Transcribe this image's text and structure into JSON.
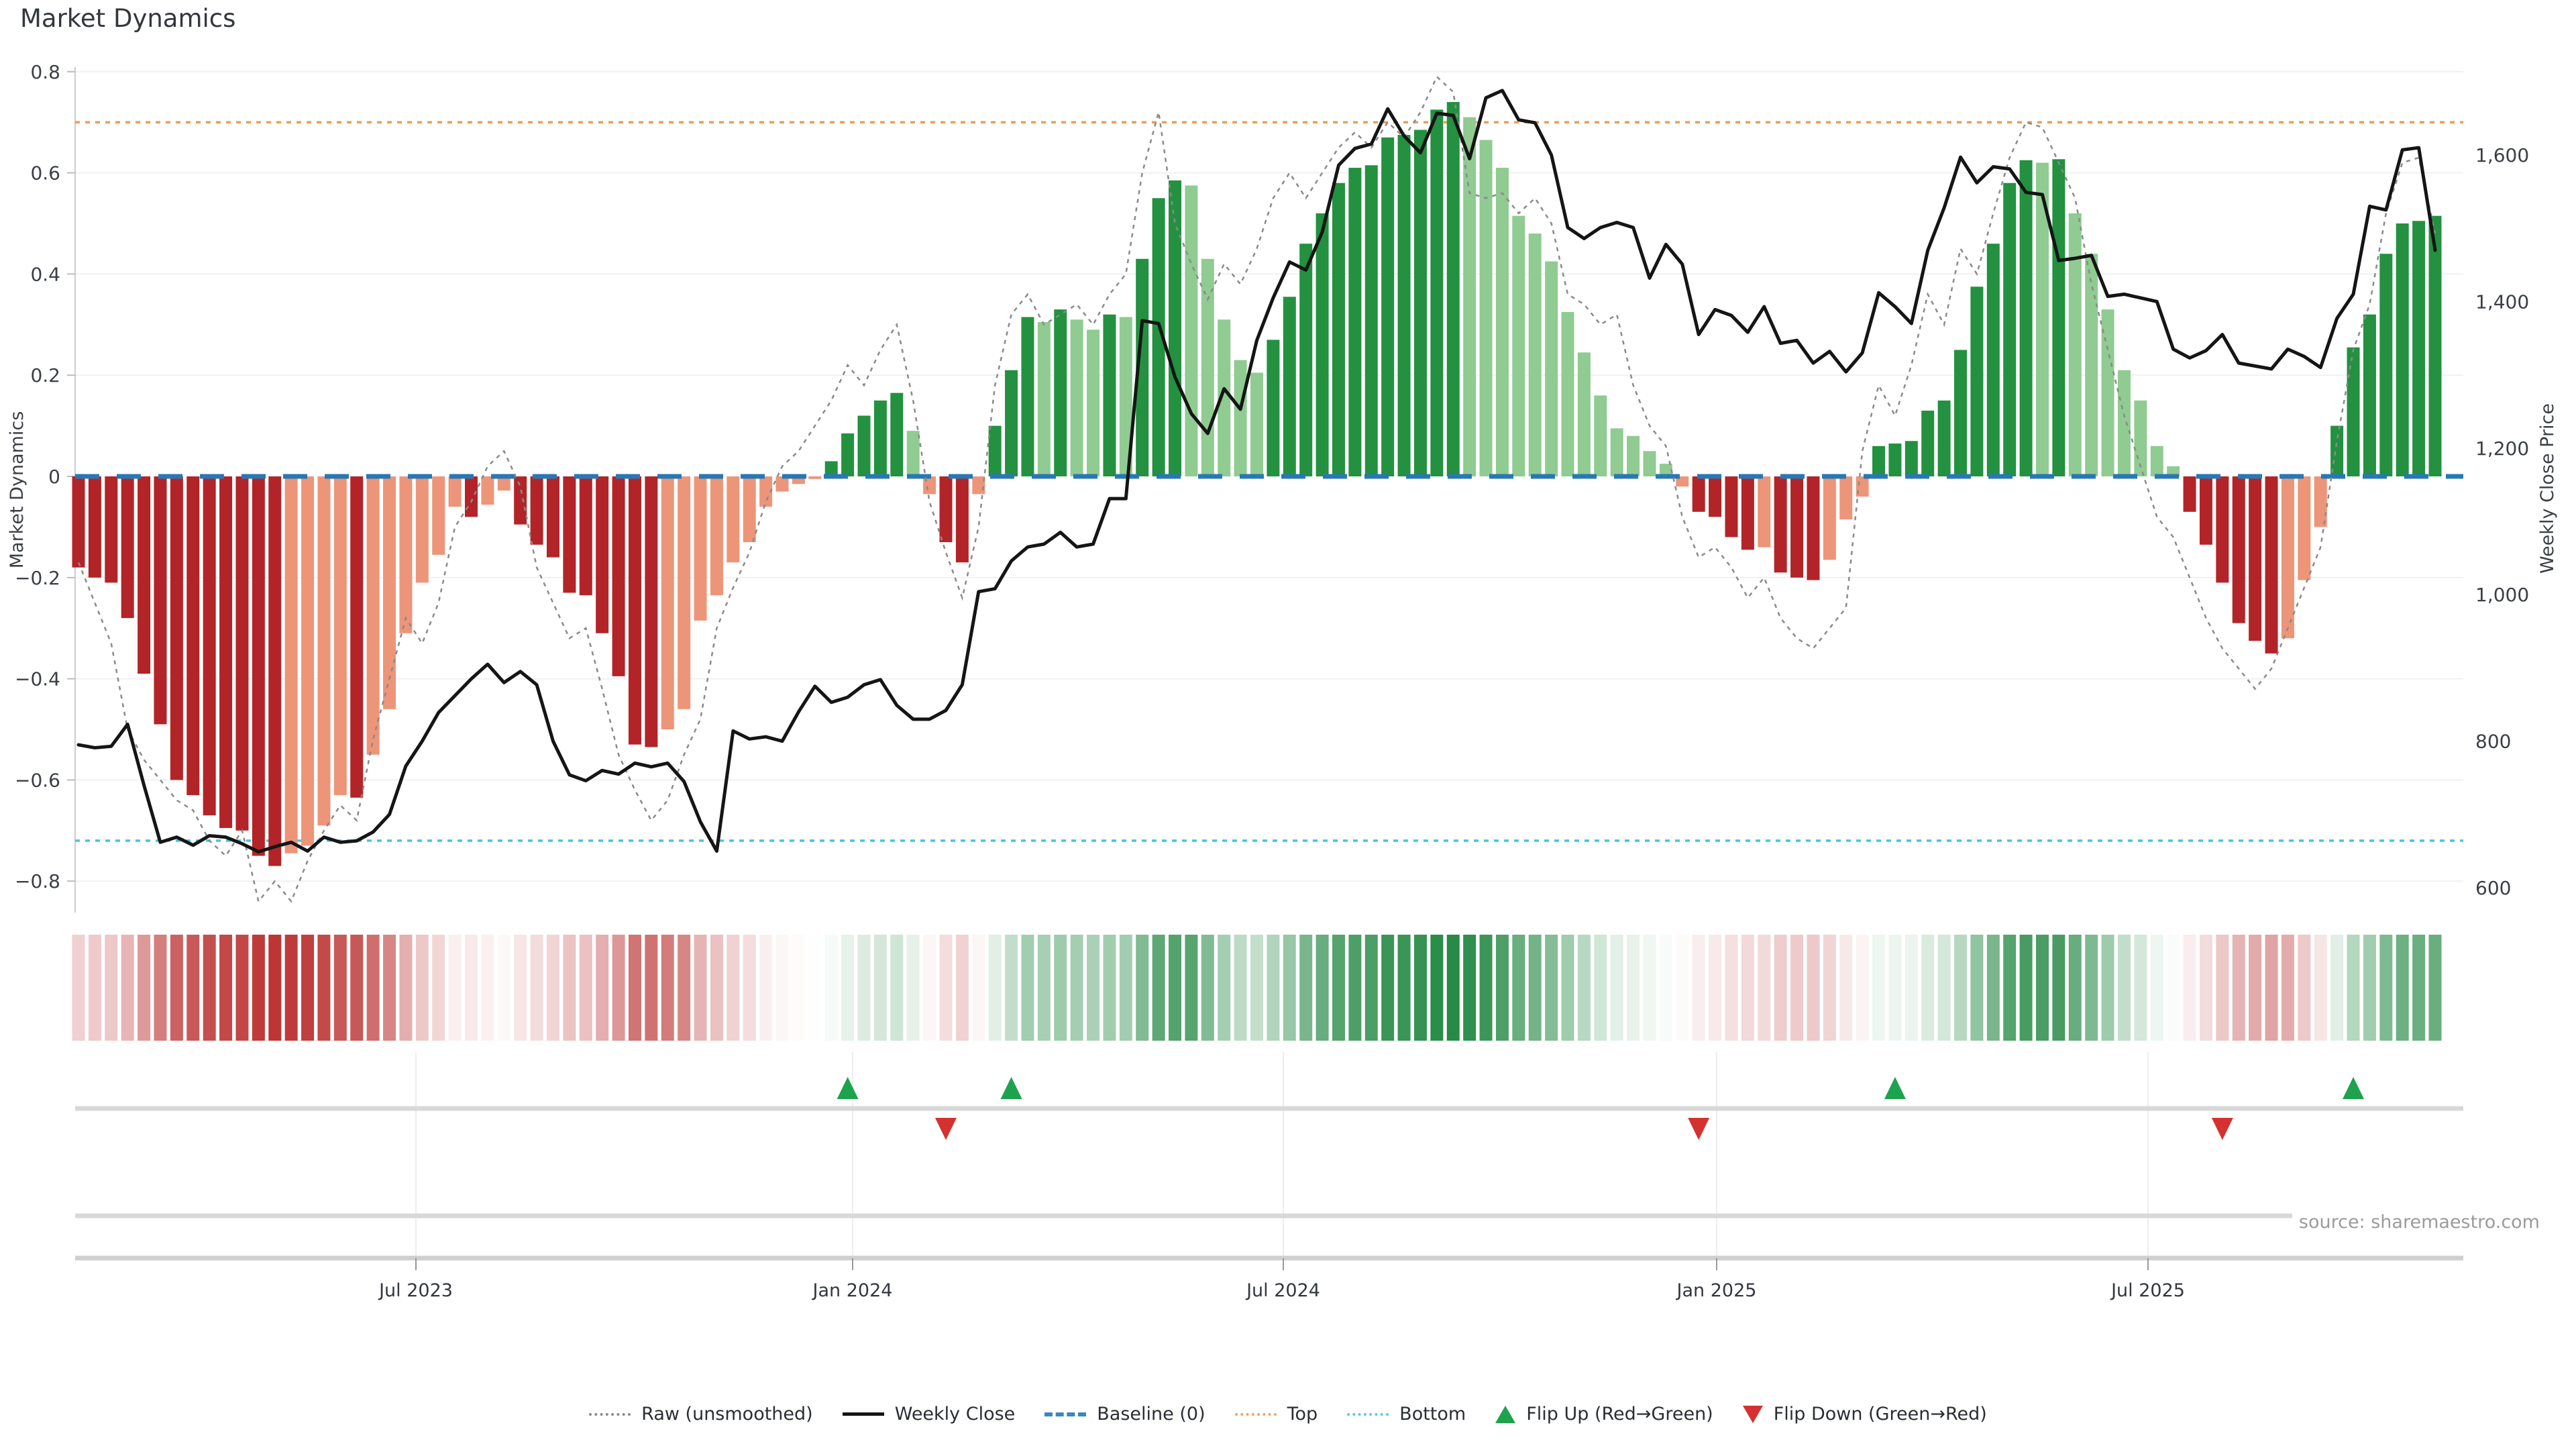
{
  "title": "Market Dynamics",
  "source_note": "source: sharemaestro.com",
  "axes": {
    "left_label": "Market Dynamics",
    "right_label": "Weekly Close Price",
    "left_tick_labels": [
      "0.8",
      "0.6",
      "0.4",
      "0.2",
      "0",
      "−0.2",
      "−0.4",
      "−0.6",
      "−0.8"
    ],
    "left_tick_values": [
      0.8,
      0.6,
      0.4,
      0.2,
      0,
      -0.2,
      -0.4,
      -0.6,
      -0.8
    ],
    "right_tick_labels": [
      "1,600",
      "1,400",
      "1,200",
      "1,000",
      "800",
      "600"
    ],
    "right_tick_values": [
      1600,
      1400,
      1200,
      1000,
      800,
      600
    ],
    "x_tick_labels": [
      "Jul 2023",
      "Jan 2024",
      "Jul 2024",
      "Jan 2025",
      "Jul 2025"
    ]
  },
  "legend": [
    {
      "label": "Raw (unsmoothed)",
      "type": "dotted-gray",
      "color": "#8a8a8a"
    },
    {
      "label": "Weekly Close",
      "type": "solid",
      "color": "#151515"
    },
    {
      "label": "Baseline (0)",
      "type": "dashed",
      "color": "#3a87bd"
    },
    {
      "label": "Top",
      "type": "dotted-orange",
      "color": "#f0a268"
    },
    {
      "label": "Bottom",
      "type": "dotted-cyan",
      "color": "#59c9e8"
    },
    {
      "label": "Flip Up (Red→Green)",
      "type": "triangle-up",
      "color": "#1da24d"
    },
    {
      "label": "Flip Down (Green→Red)",
      "type": "triangle-down",
      "color": "#d63131"
    }
  ],
  "colors": {
    "dark_red": "#b22428",
    "light_red": "#ed9579",
    "dark_green": "#239140",
    "light_green": "#90cb92",
    "baseline_blue": "#2878b4",
    "top_orange": "#eb9d57",
    "bottom_cyan": "#42c6e0",
    "raw_gray": "#8a8a8a",
    "close_black": "#151515",
    "flip_up_green": "#1da24d",
    "flip_down_red": "#d63131",
    "grid": "#f1f1f4",
    "panel_line": "#d8d8d8",
    "heat_green_base": "#1b843c",
    "heat_red_base": "#bc3232"
  },
  "chart_data": {
    "type": "combo",
    "description": "Weekly oscillator bars (Market Dynamics, left axis) + Weekly Close price line (right axis) + raw unsmoothed dotted line; heatmap strip mirrors oscillator; flip markers mark red/green regime changes. Bars are dark-shaded when |value| is strengthening vs prior week, light-shaded when weakening.",
    "baseline": 0,
    "top_threshold": 0.7,
    "bottom_threshold": -0.72,
    "left_ylim": [
      -0.86,
      0.81
    ],
    "price_ylim": [
      566,
      1718
    ],
    "x_tick_labels": [
      "Jul 2023",
      "Jan 2024",
      "Jul 2024",
      "Jan 2025",
      "Jul 2025"
    ],
    "flip_up_indices": [
      47,
      57,
      111,
      139
    ],
    "flip_down_indices": [
      53,
      99,
      131
    ],
    "oscillator": [
      -0.18,
      -0.2,
      -0.21,
      -0.28,
      -0.39,
      -0.49,
      -0.6,
      -0.63,
      -0.67,
      -0.695,
      -0.7,
      -0.75,
      -0.77,
      -0.745,
      -0.73,
      -0.69,
      -0.63,
      -0.635,
      -0.55,
      -0.46,
      -0.31,
      -0.21,
      -0.155,
      -0.06,
      -0.08,
      -0.056,
      -0.028,
      -0.095,
      -0.135,
      -0.16,
      -0.23,
      -0.235,
      -0.31,
      -0.395,
      -0.53,
      -0.535,
      -0.5,
      -0.46,
      -0.285,
      -0.235,
      -0.17,
      -0.13,
      -0.06,
      -0.03,
      -0.015,
      -0.005,
      0.03,
      0.085,
      0.12,
      0.15,
      0.165,
      0.09,
      -0.035,
      -0.13,
      -0.17,
      -0.035,
      0.1,
      0.21,
      0.315,
      0.305,
      0.33,
      0.31,
      0.29,
      0.32,
      0.315,
      0.43,
      0.55,
      0.585,
      0.575,
      0.43,
      0.31,
      0.23,
      0.205,
      0.27,
      0.355,
      0.46,
      0.52,
      0.58,
      0.61,
      0.615,
      0.67,
      0.675,
      0.685,
      0.725,
      0.74,
      0.71,
      0.665,
      0.61,
      0.515,
      0.48,
      0.425,
      0.325,
      0.245,
      0.16,
      0.095,
      0.08,
      0.05,
      0.025,
      -0.02,
      -0.07,
      -0.08,
      -0.12,
      -0.145,
      -0.14,
      -0.19,
      -0.2,
      -0.205,
      -0.165,
      -0.085,
      -0.04,
      0.06,
      0.065,
      0.07,
      0.13,
      0.15,
      0.25,
      0.375,
      0.46,
      0.58,
      0.625,
      0.62,
      0.627,
      0.52,
      0.44,
      0.33,
      0.21,
      0.15,
      0.06,
      0.02,
      -0.07,
      -0.135,
      -0.21,
      -0.29,
      -0.325,
      -0.35,
      -0.32,
      -0.205,
      -0.1,
      0.1,
      0.255,
      0.32,
      0.44,
      0.5,
      0.505,
      0.515
    ],
    "weekly_close": [
      795,
      791,
      793,
      823,
      740,
      662,
      669,
      658,
      671,
      669,
      660,
      649,
      656,
      662,
      650,
      669,
      662,
      664,
      676,
      700,
      766,
      800,
      839,
      862,
      885,
      905,
      880,
      895,
      877,
      800,
      754,
      746,
      760,
      755,
      770,
      765,
      770,
      745,
      690,
      650,
      814,
      803,
      806,
      800,
      840,
      875,
      853,
      860,
      877,
      884,
      849,
      830,
      830,
      842,
      877,
      1004,
      1008,
      1046,
      1065,
      1069,
      1085,
      1065,
      1069,
      1131,
      1131,
      1374,
      1370,
      1297,
      1247,
      1220,
      1281,
      1253,
      1347,
      1405,
      1454,
      1443,
      1495,
      1586,
      1609,
      1615,
      1663,
      1626,
      1603,
      1657,
      1654,
      1595,
      1678,
      1688,
      1648,
      1644,
      1600,
      1501,
      1486,
      1501,
      1508,
      1501,
      1432,
      1478,
      1451,
      1355,
      1389,
      1381,
      1358,
      1393,
      1343,
      1347,
      1316,
      1332,
      1304,
      1330,
      1412,
      1393,
      1370,
      1470,
      1528,
      1597,
      1562,
      1584,
      1581,
      1549,
      1546,
      1456,
      1459,
      1463,
      1407,
      1410,
      1405,
      1400,
      1335,
      1323,
      1333,
      1355,
      1316,
      1312,
      1308,
      1335,
      1325,
      1310,
      1377,
      1410,
      1530,
      1525,
      1607,
      1610,
      1470
    ],
    "raw": [
      -0.17,
      -0.25,
      -0.33,
      -0.5,
      -0.56,
      -0.6,
      -0.64,
      -0.66,
      -0.72,
      -0.75,
      -0.7,
      -0.84,
      -0.8,
      -0.84,
      -0.76,
      -0.7,
      -0.65,
      -0.68,
      -0.52,
      -0.4,
      -0.28,
      -0.33,
      -0.25,
      -0.1,
      -0.05,
      0.02,
      0.05,
      -0.02,
      -0.18,
      -0.25,
      -0.32,
      -0.3,
      -0.42,
      -0.55,
      -0.62,
      -0.68,
      -0.64,
      -0.55,
      -0.48,
      -0.3,
      -0.22,
      -0.15,
      -0.05,
      0.02,
      0.05,
      0.1,
      0.15,
      0.22,
      0.18,
      0.25,
      0.3,
      0.15,
      -0.05,
      -0.15,
      -0.24,
      -0.1,
      0.18,
      0.32,
      0.36,
      0.3,
      0.32,
      0.34,
      0.3,
      0.36,
      0.4,
      0.6,
      0.72,
      0.5,
      0.42,
      0.35,
      0.42,
      0.38,
      0.45,
      0.55,
      0.6,
      0.55,
      0.6,
      0.65,
      0.68,
      0.65,
      0.7,
      0.67,
      0.72,
      0.79,
      0.76,
      0.56,
      0.55,
      0.56,
      0.52,
      0.55,
      0.5,
      0.36,
      0.34,
      0.3,
      0.32,
      0.18,
      0.1,
      0.06,
      -0.08,
      -0.16,
      -0.14,
      -0.18,
      -0.24,
      -0.2,
      -0.28,
      -0.32,
      -0.34,
      -0.3,
      -0.26,
      0.05,
      0.18,
      0.12,
      0.22,
      0.36,
      0.3,
      0.45,
      0.4,
      0.52,
      0.63,
      0.7,
      0.69,
      0.62,
      0.55,
      0.38,
      0.25,
      0.12,
      0.02,
      -0.08,
      -0.12,
      -0.2,
      -0.28,
      -0.34,
      -0.38,
      -0.42,
      -0.38,
      -0.3,
      -0.22,
      -0.14,
      0.07,
      0.25,
      0.34,
      0.52,
      0.62,
      0.63,
      0.48
    ]
  }
}
